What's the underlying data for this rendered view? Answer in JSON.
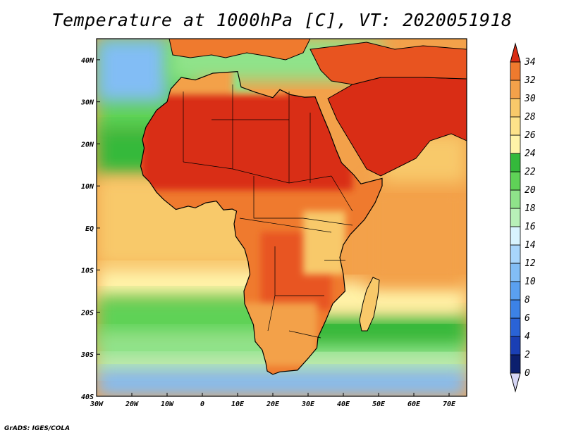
{
  "title": "Temperature at 1000hPa [C], VT: 2020051918",
  "footer": "GrADS: IGES/COLA",
  "map": {
    "variable": "Temperature at 1000hPa",
    "units": "C",
    "valid_time": "2020051918",
    "lon_range": [
      -30,
      75
    ],
    "lat_range": [
      -40,
      45
    ],
    "x_ticks": [
      {
        "value": -30,
        "label": "30W"
      },
      {
        "value": -20,
        "label": "20W"
      },
      {
        "value": -10,
        "label": "10W"
      },
      {
        "value": 0,
        "label": "0"
      },
      {
        "value": 10,
        "label": "10E"
      },
      {
        "value": 20,
        "label": "20E"
      },
      {
        "value": 30,
        "label": "30E"
      },
      {
        "value": 40,
        "label": "40E"
      },
      {
        "value": 50,
        "label": "50E"
      },
      {
        "value": 60,
        "label": "60E"
      },
      {
        "value": 70,
        "label": "70E"
      }
    ],
    "y_ticks": [
      {
        "value": 40,
        "label": "40N"
      },
      {
        "value": 30,
        "label": "30N"
      },
      {
        "value": 20,
        "label": "20N"
      },
      {
        "value": 10,
        "label": "10N"
      },
      {
        "value": 0,
        "label": "EQ"
      },
      {
        "value": -10,
        "label": "10S"
      },
      {
        "value": -20,
        "label": "20S"
      },
      {
        "value": -30,
        "label": "30S"
      },
      {
        "value": -40,
        "label": "40S"
      }
    ]
  },
  "colorbar": {
    "labels": [
      "0",
      "2",
      "4",
      "6",
      "8",
      "10",
      "12",
      "14",
      "16",
      "18",
      "20",
      "22",
      "24",
      "26",
      "28",
      "30",
      "32",
      "34"
    ],
    "colors": [
      "#0c1f6e",
      "#1a3fb4",
      "#2a63d6",
      "#3c82e6",
      "#5aa0f0",
      "#82bdf5",
      "#a8d5fb",
      "#d8f3fe",
      "#b8f0b8",
      "#8fe38a",
      "#5fd257",
      "#34b93b",
      "#fff3a8",
      "#fde28a",
      "#f8c96a",
      "#f3a14a",
      "#ef7a2e",
      "#e85420",
      "#d92d15"
    ]
  },
  "regions": [
    {
      "name": "sahara-hot-core",
      "value": 34
    },
    {
      "name": "arabia-hot-core",
      "value": 33
    },
    {
      "name": "equatorial-atlantic",
      "value": 27
    },
    {
      "name": "indian-ocean",
      "value": 28
    },
    {
      "name": "southern-ocean",
      "value": 14
    }
  ]
}
